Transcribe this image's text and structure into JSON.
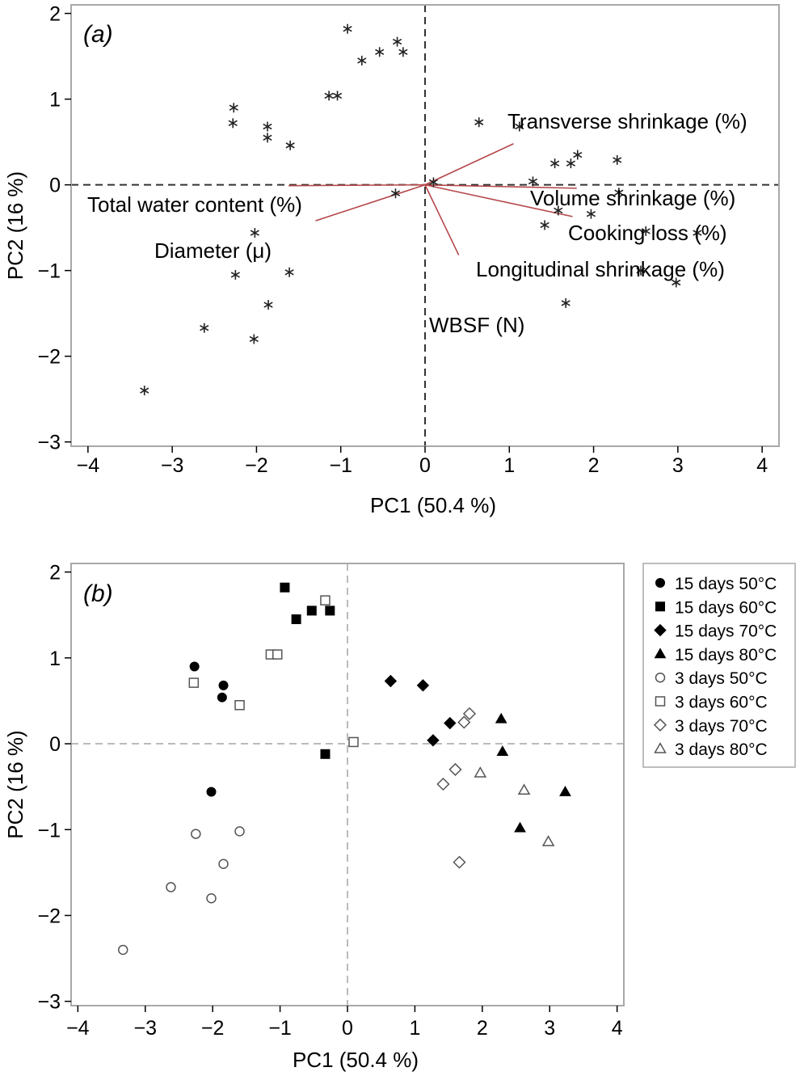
{
  "chart_data": [
    {
      "type": "scatter",
      "subtype": "biplot",
      "panel_label": "(a)",
      "xlabel": "PC1 (50.4 %)",
      "ylabel": "PC2 (16 %)",
      "xlim": [
        -4.2,
        4.2
      ],
      "ylim": [
        -3.05,
        2.1
      ],
      "xticks": [
        -4,
        -3,
        -2,
        -1,
        0,
        1,
        2,
        3,
        4
      ],
      "yticks": [
        -3,
        -2,
        -1,
        0,
        1,
        2
      ],
      "tick_labels_x": [
        "−4",
        "−3",
        "−2",
        "−1",
        "0",
        "1",
        "2",
        "3",
        "4"
      ],
      "tick_labels_y": [
        "−3",
        "−2",
        "−1",
        "0",
        "1",
        "2"
      ],
      "marker": "asterisk",
      "vector_color": "#b5474a",
      "points": [
        [
          -3.33,
          -2.4
        ],
        [
          -2.62,
          -1.67
        ],
        [
          -2.27,
          0.9
        ],
        [
          -2.28,
          0.72
        ],
        [
          -2.25,
          -1.05
        ],
        [
          -2.02,
          -0.56
        ],
        [
          -2.03,
          -1.8
        ],
        [
          -1.87,
          0.68
        ],
        [
          -1.87,
          0.55
        ],
        [
          -1.86,
          -1.4
        ],
        [
          -1.6,
          0.46
        ],
        [
          -1.61,
          -1.02
        ],
        [
          -1.14,
          1.04
        ],
        [
          -1.04,
          1.04
        ],
        [
          -0.92,
          1.82
        ],
        [
          -0.75,
          1.45
        ],
        [
          -0.54,
          1.55
        ],
        [
          -0.33,
          1.67
        ],
        [
          -0.26,
          1.55
        ],
        [
          -0.35,
          -0.1
        ],
        [
          0.1,
          0.03
        ],
        [
          0.64,
          0.73
        ],
        [
          1.12,
          0.68
        ],
        [
          1.28,
          0.04
        ],
        [
          1.54,
          0.25
        ],
        [
          1.42,
          -0.47
        ],
        [
          1.58,
          -0.3
        ],
        [
          1.73,
          0.25
        ],
        [
          1.81,
          0.35
        ],
        [
          1.97,
          -0.34
        ],
        [
          2.28,
          0.29
        ],
        [
          2.3,
          -0.09
        ],
        [
          1.67,
          -1.38
        ],
        [
          2.56,
          -1.0
        ],
        [
          2.62,
          -0.54
        ],
        [
          3.23,
          -0.56
        ],
        [
          2.98,
          -1.14
        ]
      ],
      "vectors": [
        {
          "label": "Transverse shrinkage (%)",
          "x": 1.05,
          "y": 0.48
        },
        {
          "label": "Volume shrinkage (%)",
          "x": 1.8,
          "y": -0.04
        },
        {
          "label": "Cooking loss (%)",
          "x": 1.75,
          "y": -0.37
        },
        {
          "label": "Longitudinal shrinkage (%)",
          "x": 0.4,
          "y": -0.82
        },
        {
          "label": "WBSF (N)",
          "x": 0.0,
          "y": 0.0
        },
        {
          "label": "Total water content (%)",
          "x": -1.3,
          "y": -0.42
        },
        {
          "label": "Diameter (μ)",
          "x": -1.62,
          "y": -0.01
        }
      ]
    },
    {
      "type": "scatter",
      "panel_label": "(b)",
      "xlabel": "PC1 (50.4 %)",
      "ylabel": "PC2 (16 %)",
      "xlim": [
        -4.1,
        4.1
      ],
      "ylim": [
        -3.05,
        2.1
      ],
      "xticks": [
        -4,
        -3,
        -2,
        -1,
        0,
        1,
        2,
        3,
        4
      ],
      "yticks": [
        -3,
        -2,
        -1,
        0,
        1,
        2
      ],
      "tick_labels_x": [
        "−4",
        "−3",
        "−2",
        "−1",
        "0",
        "1",
        "2",
        "3",
        "4"
      ],
      "tick_labels_y": [
        "−3",
        "−2",
        "−1",
        "0",
        "1",
        "2"
      ],
      "legend": "outside-right",
      "series": [
        {
          "name": "15 days 50°C",
          "marker": "circle",
          "filled": true,
          "points": [
            [
              -2.27,
              0.9
            ],
            [
              -1.84,
              0.68
            ],
            [
              -1.86,
              0.54
            ],
            [
              -2.02,
              -0.56
            ]
          ]
        },
        {
          "name": "15 days 60°C",
          "marker": "square",
          "filled": true,
          "points": [
            [
              -0.93,
              1.82
            ],
            [
              -0.76,
              1.45
            ],
            [
              -0.53,
              1.55
            ],
            [
              -0.26,
              1.55
            ],
            [
              -0.33,
              -0.12
            ]
          ]
        },
        {
          "name": "15 days 70°C",
          "marker": "diamond",
          "filled": true,
          "points": [
            [
              0.64,
              0.73
            ],
            [
              1.12,
              0.68
            ],
            [
              1.52,
              0.24
            ],
            [
              1.27,
              0.04
            ]
          ]
        },
        {
          "name": "15 days 80°C",
          "marker": "triangle",
          "filled": true,
          "points": [
            [
              2.28,
              0.29
            ],
            [
              2.3,
              -0.09
            ],
            [
              3.23,
              -0.56
            ],
            [
              2.56,
              -0.98
            ]
          ]
        },
        {
          "name": "3 days 50°C",
          "marker": "circle",
          "filled": false,
          "points": [
            [
              -3.33,
              -2.4
            ],
            [
              -2.62,
              -1.67
            ],
            [
              -2.25,
              -1.05
            ],
            [
              -1.84,
              -1.4
            ],
            [
              -2.02,
              -1.8
            ],
            [
              -1.6,
              -1.02
            ]
          ]
        },
        {
          "name": "3 days 60°C",
          "marker": "square",
          "filled": false,
          "points": [
            [
              -2.28,
              0.71
            ],
            [
              -1.6,
              0.45
            ],
            [
              -1.14,
              1.04
            ],
            [
              -1.04,
              1.04
            ],
            [
              -0.33,
              1.67
            ],
            [
              0.09,
              0.02
            ]
          ]
        },
        {
          "name": "3 days 70°C",
          "marker": "diamond",
          "filled": false,
          "points": [
            [
              1.73,
              0.25
            ],
            [
              1.81,
              0.35
            ],
            [
              1.6,
              -0.3
            ],
            [
              1.42,
              -0.47
            ],
            [
              1.66,
              -1.38
            ]
          ]
        },
        {
          "name": "3 days 80°C",
          "marker": "triangle",
          "filled": false,
          "points": [
            [
              1.97,
              -0.34
            ],
            [
              2.62,
              -0.54
            ],
            [
              2.98,
              -1.14
            ]
          ]
        }
      ]
    }
  ]
}
